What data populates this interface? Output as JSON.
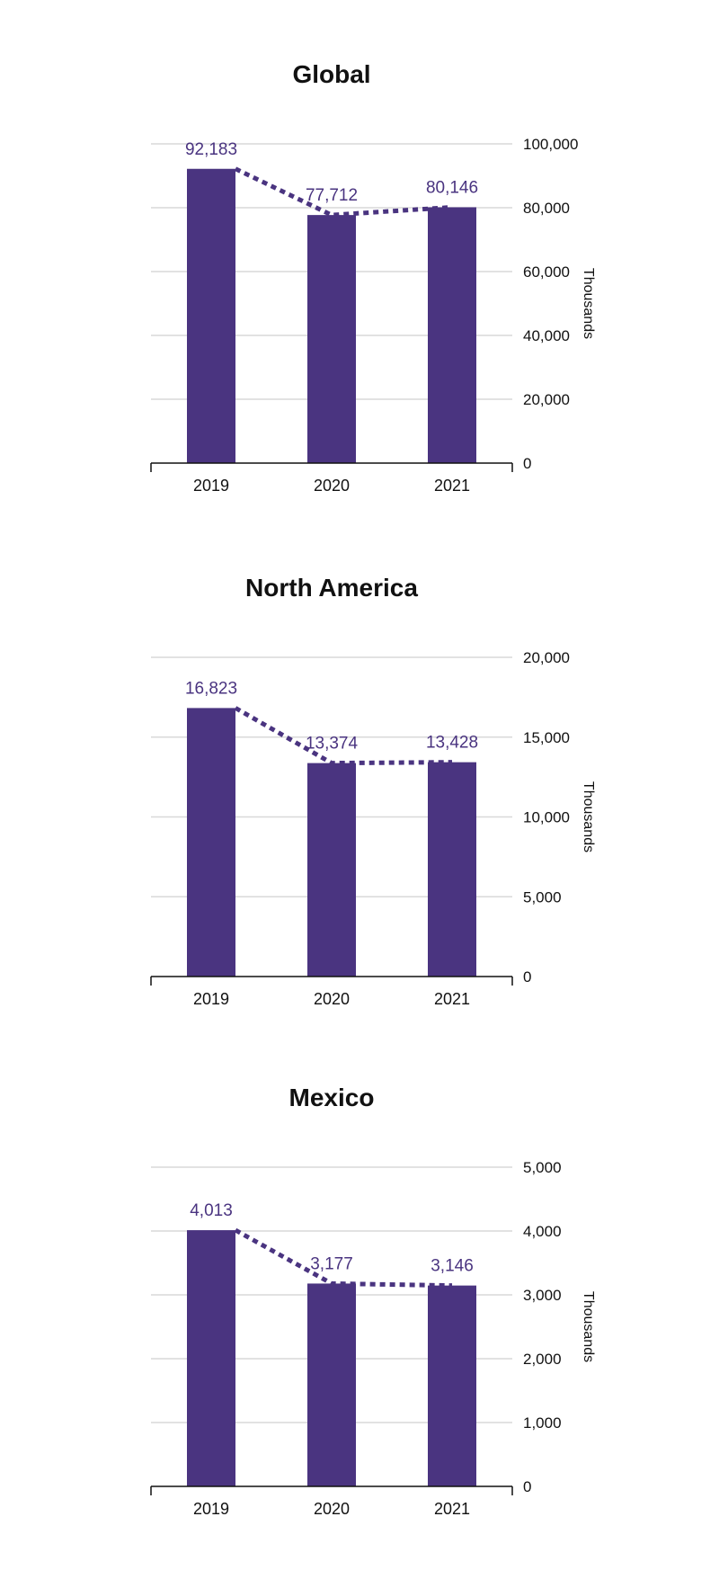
{
  "colors": {
    "bar": "#4a3480",
    "trend": "#4a3480",
    "grid": "#d9d9d9",
    "axis": "#111111"
  },
  "chart_data": [
    {
      "type": "bar",
      "title": "Global",
      "categories": [
        "2019",
        "2020",
        "2021"
      ],
      "values": [
        92183,
        77712,
        80146
      ],
      "value_labels": [
        "92,183",
        "77,712",
        "80,146"
      ],
      "yticks": [
        0,
        20000,
        40000,
        60000,
        80000,
        100000
      ],
      "ytick_labels": [
        "0",
        "20,000",
        "40,000",
        "60,000",
        "80,000",
        "100,000"
      ],
      "ylim": [
        0,
        100000
      ],
      "ylabel": "Thousands",
      "trend_line": "dotted",
      "y_axis_position": "right"
    },
    {
      "type": "bar",
      "title": "North America",
      "categories": [
        "2019",
        "2020",
        "2021"
      ],
      "values": [
        16823,
        13374,
        13428
      ],
      "value_labels": [
        "16,823",
        "13,374",
        "13,428"
      ],
      "yticks": [
        0,
        5000,
        10000,
        15000,
        20000
      ],
      "ytick_labels": [
        "0",
        "5,000",
        "10,000",
        "15,000",
        "20,000"
      ],
      "ylim": [
        0,
        20000
      ],
      "ylabel": "Thousands",
      "trend_line": "dotted",
      "y_axis_position": "right"
    },
    {
      "type": "bar",
      "title": "Mexico",
      "categories": [
        "2019",
        "2020",
        "2021"
      ],
      "values": [
        4013,
        3177,
        3146
      ],
      "value_labels": [
        "4,013",
        "3,177",
        "3,146"
      ],
      "yticks": [
        0,
        1000,
        2000,
        3000,
        4000,
        5000
      ],
      "ytick_labels": [
        "0",
        "1,000",
        "2,000",
        "3,000",
        "4,000",
        "5,000"
      ],
      "ylim": [
        0,
        5000
      ],
      "ylabel": "Thousands",
      "trend_line": "dotted",
      "y_axis_position": "right"
    }
  ]
}
